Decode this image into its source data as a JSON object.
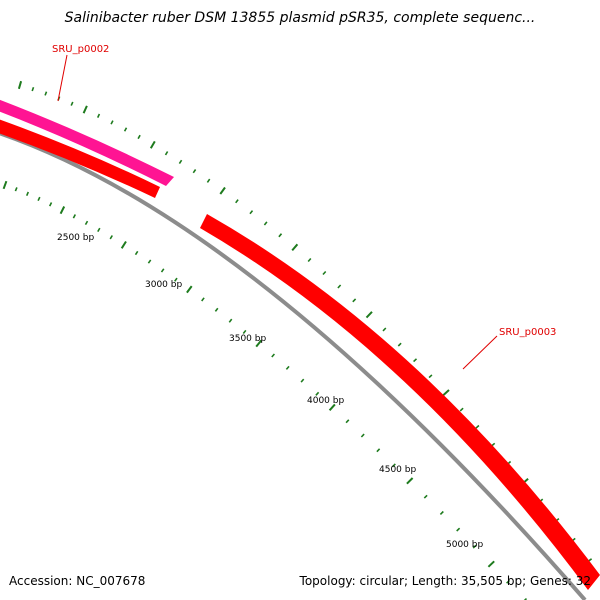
{
  "map": {
    "title": "Salinibacter ruber DSM 13855 plasmid pSR35, complete sequenc...",
    "accession": "Accession: NC_007678",
    "summary": "Topology: circular; Length: 35,505 bp; Genes: 32"
  },
  "colors": {
    "backbone": "#8c8c8c",
    "gene_forward": "#ff0000",
    "gene_forward_highlight": "#ff1493",
    "tick_marks": "#1e7b1e",
    "label_red": "#e00000"
  },
  "scale_ticks": [
    {
      "label": "2500 bp"
    },
    {
      "label": "3000 bp"
    },
    {
      "label": "3500 bp"
    },
    {
      "label": "4000 bp"
    },
    {
      "label": "4500 bp"
    },
    {
      "label": "5000 bp"
    }
  ],
  "genes": [
    {
      "name": "SRU_p0002"
    },
    {
      "name": "SRU_p0003"
    }
  ]
}
